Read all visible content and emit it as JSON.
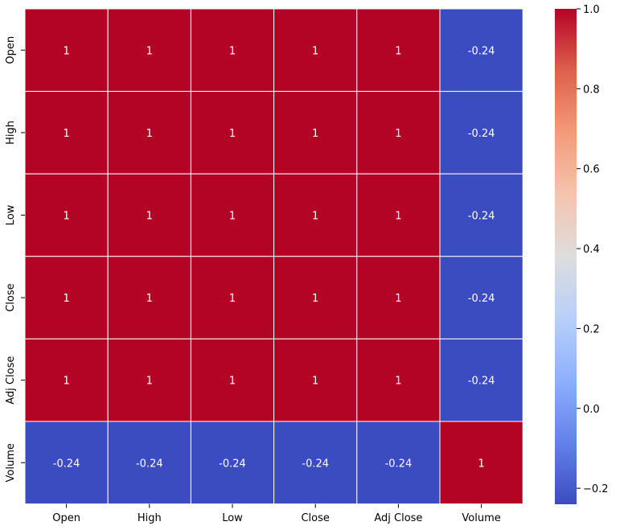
{
  "chart_data": {
    "type": "heatmap",
    "title": "",
    "xlabel": "",
    "ylabel": "",
    "x_categories": [
      "Open",
      "High",
      "Low",
      "Close",
      "Adj Close",
      "Volume"
    ],
    "y_categories": [
      "Open",
      "High",
      "Low",
      "Close",
      "Adj Close",
      "Volume"
    ],
    "values": [
      [
        1,
        1,
        1,
        1,
        1,
        -0.24
      ],
      [
        1,
        1,
        1,
        1,
        1,
        -0.24
      ],
      [
        1,
        1,
        1,
        1,
        1,
        -0.24
      ],
      [
        1,
        1,
        1,
        1,
        1,
        -0.24
      ],
      [
        1,
        1,
        1,
        1,
        1,
        -0.24
      ],
      [
        -0.24,
        -0.24,
        -0.24,
        -0.24,
        -0.24,
        1
      ]
    ],
    "cell_labels": [
      [
        "1",
        "1",
        "1",
        "1",
        "1",
        "-0.24"
      ],
      [
        "1",
        "1",
        "1",
        "1",
        "1",
        "-0.24"
      ],
      [
        "1",
        "1",
        "1",
        "1",
        "1",
        "-0.24"
      ],
      [
        "1",
        "1",
        "1",
        "1",
        "1",
        "-0.24"
      ],
      [
        "1",
        "1",
        "1",
        "1",
        "1",
        "-0.24"
      ],
      [
        "-0.24",
        "-0.24",
        "-0.24",
        "-0.24",
        "-0.24",
        "1"
      ]
    ],
    "colorscale": "coolwarm",
    "color_range": [
      -0.24,
      1.0
    ],
    "colorbar": {
      "ticks": [
        1.0,
        0.8,
        0.6,
        0.4,
        0.2,
        0.0,
        -0.2
      ],
      "tick_labels": [
        "1.0",
        "0.8",
        "0.6",
        "0.4",
        "0.2",
        "0.0",
        "−0.2"
      ]
    },
    "annotation_color": "#ffffff",
    "grid_line_color": "#ffffff"
  }
}
